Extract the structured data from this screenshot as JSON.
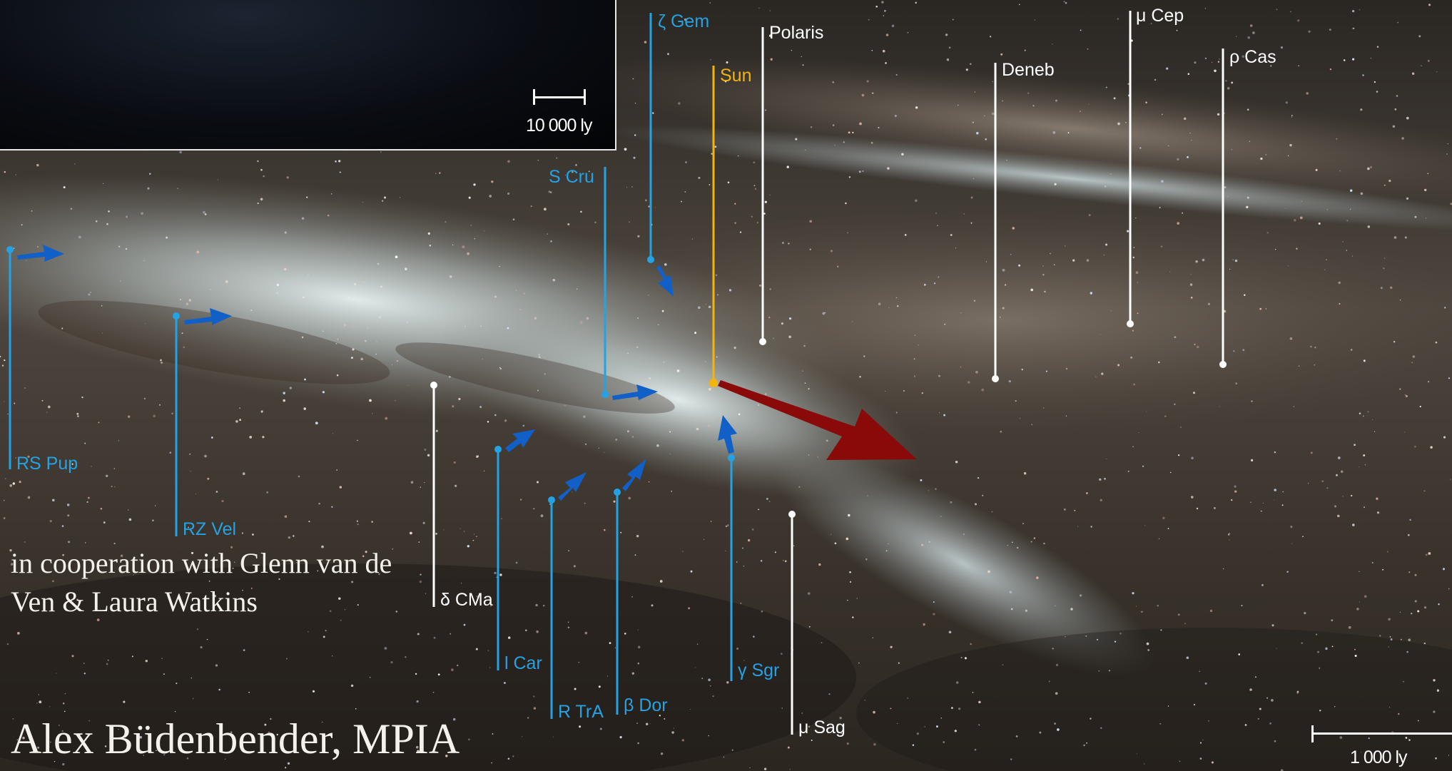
{
  "inset": {
    "scale_label": "10 000 ly"
  },
  "scale": {
    "label": "1 000 ly"
  },
  "credit": {
    "cooperation": "in cooperation with Glenn van de Ven & Laura Watkins",
    "author": "Alex Büdenbender,  MPIA"
  },
  "stars": {
    "zeta_gem": "ζ Gem",
    "polaris": "Polaris",
    "sun": "Sun",
    "deneb": "Deneb",
    "mu_cep": "μ Cep",
    "rho_cas": "ρ Cas",
    "s_cru": "S Cru",
    "rs_pup": "RS Pup",
    "rz_vel": "RZ Vel",
    "delta_cma": "δ CMa",
    "l_car": "l Car",
    "r_tra": "R TrA",
    "beta_dor": "β Dor",
    "gamma_sgr": "γ Sgr",
    "mu_sag": "μ Sag"
  },
  "colors": {
    "cepheid": "#23a3e6",
    "reference_star": "#ffffff",
    "sun": "#f5b40a",
    "sun_motion_arrow": "#8a0a0a",
    "cepheid_motion_arrow": "#1060c8"
  }
}
